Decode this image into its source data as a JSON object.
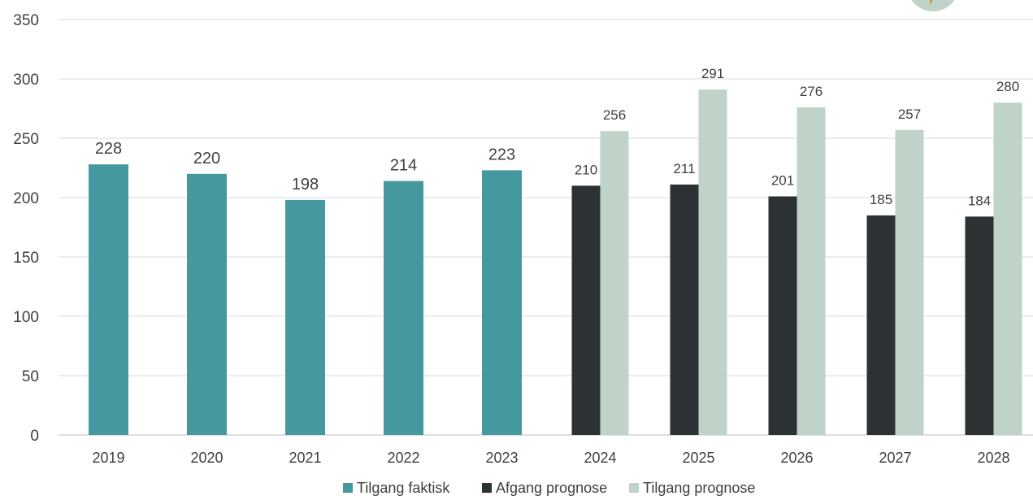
{
  "chart_data": {
    "type": "bar",
    "categories": [
      "2019",
      "2020",
      "2021",
      "2022",
      "2023",
      "2024",
      "2025",
      "2026",
      "2027",
      "2028"
    ],
    "series": [
      {
        "name": "Tilgang faktisk",
        "color": "#45989e",
        "values": [
          228,
          220,
          198,
          214,
          223,
          null,
          null,
          null,
          null,
          null
        ]
      },
      {
        "name": "Afgang prognose",
        "color": "#2c3133",
        "values": [
          null,
          null,
          null,
          null,
          null,
          210,
          211,
          201,
          185,
          184
        ]
      },
      {
        "name": "Tilgang prognose",
        "color": "#bfd3c8",
        "values": [
          null,
          null,
          null,
          null,
          null,
          256,
          291,
          276,
          257,
          280
        ]
      }
    ],
    "y_ticks": [
      "0",
      "50",
      "100",
      "150",
      "200",
      "250",
      "300",
      "350"
    ],
    "ylim": [
      0,
      350
    ],
    "grid": true,
    "legend_position": "bottom",
    "gridline_color": "#d9d9d9"
  }
}
